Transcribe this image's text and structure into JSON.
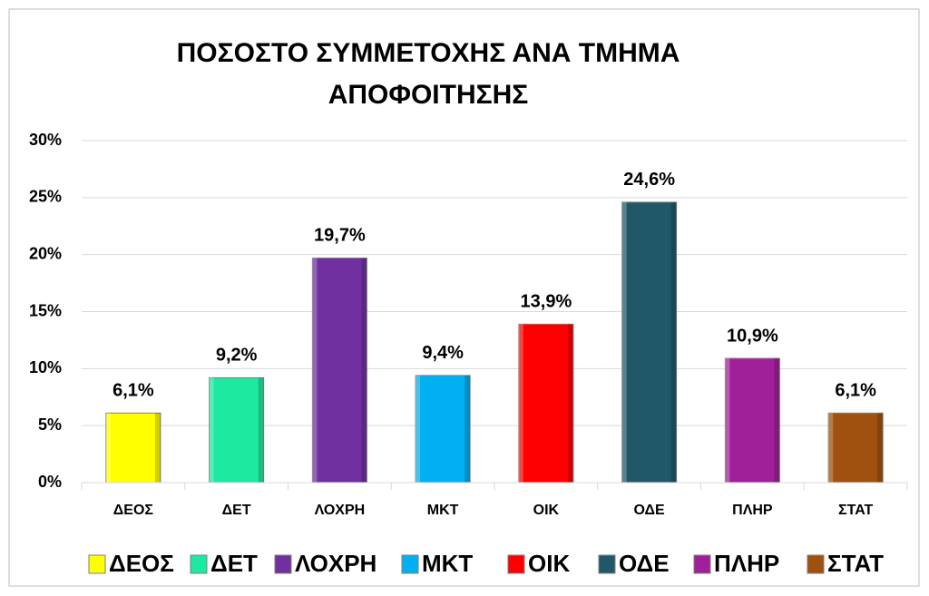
{
  "chart_data": {
    "type": "bar",
    "title": "ΠΟΣΟΣΤΟ ΣΥΜΜΕΤΟΧΗΣ ΑΝΑ ΤΜΗΜΑ ΑΠΟΦΟΙΤΗΣΗΣ",
    "categories": [
      "ΔΕΟΣ",
      "ΔΕΤ",
      "ΛΟΧΡΗ",
      "ΜΚΤ",
      "ΟΙΚ",
      "ΟΔΕ",
      "ΠΛΗΡ",
      "ΣΤΑΤ"
    ],
    "values": [
      6.1,
      9.2,
      19.7,
      9.4,
      13.9,
      24.6,
      10.9,
      6.1
    ],
    "value_labels": [
      "6,1%",
      "9,2%",
      "19,7%",
      "9,4%",
      "13,9%",
      "24,6%",
      "10,9%",
      "6,1%"
    ],
    "colors": [
      "#ffff00",
      "#1de9a0",
      "#7030a0",
      "#00b0f0",
      "#ff0000",
      "#215868",
      "#a0209a",
      "#a0500f"
    ],
    "ylim": [
      0,
      30
    ],
    "yticks": [
      {
        "value": 0,
        "label": "0%"
      },
      {
        "value": 5,
        "label": "5%"
      },
      {
        "value": 10,
        "label": "10%"
      },
      {
        "value": 15,
        "label": "15%"
      },
      {
        "value": 20,
        "label": "20%"
      },
      {
        "value": 25,
        "label": "25%"
      },
      {
        "value": 30,
        "label": "30%"
      }
    ],
    "grid": true,
    "legend": "bottom"
  }
}
